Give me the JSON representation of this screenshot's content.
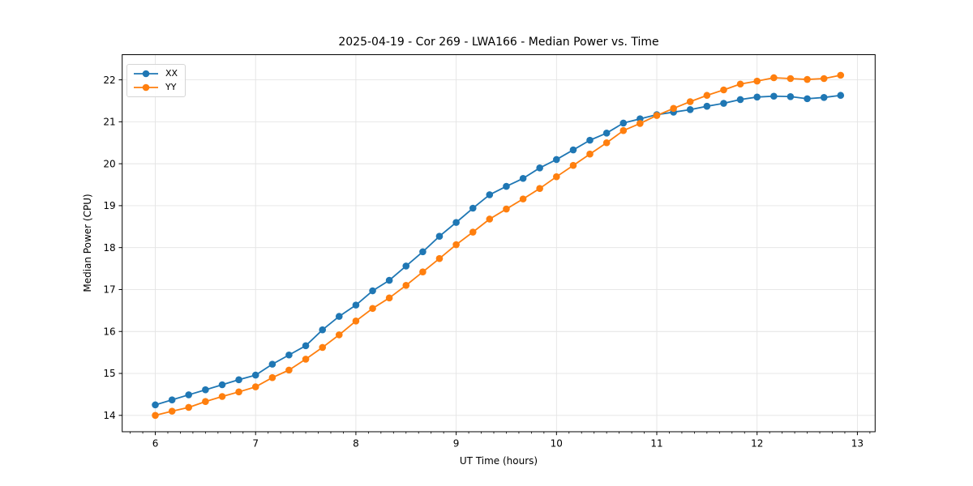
{
  "title": "2025-04-19 - Cor 269 - LWA166 - Median Power vs. Time",
  "colors": {
    "background": "#ffffff",
    "grid": "#e4e4e4",
    "spine": "#000000",
    "text": "#000000",
    "legend_border": "#d5d5d5",
    "series_xx": "#1f77b4",
    "series_yy": "#ff7f0e"
  },
  "chart_data": {
    "type": "line",
    "title": "2025-04-19 - Cor 269 - LWA166 - Median Power vs. Time",
    "xlabel": "UT Time (hours)",
    "ylabel": "Median Power (CPU)",
    "legend_position": "upper-left",
    "grid": true,
    "marker": "circle",
    "xlim": [
      5.67,
      13.177
    ],
    "ylim": [
      13.61,
      22.6
    ],
    "xticks": [
      6,
      7,
      8,
      9,
      10,
      11,
      12,
      13
    ],
    "yticks": [
      14,
      15,
      16,
      17,
      18,
      19,
      20,
      21,
      22
    ],
    "x_minor_step": 0.125,
    "x": [
      6.0,
      6.167,
      6.333,
      6.5,
      6.667,
      6.833,
      7.0,
      7.167,
      7.333,
      7.5,
      7.667,
      7.833,
      8.0,
      8.167,
      8.333,
      8.5,
      8.667,
      8.833,
      9.0,
      9.167,
      9.333,
      9.5,
      9.667,
      9.833,
      10.0,
      10.167,
      10.333,
      10.5,
      10.667,
      10.833,
      11.0,
      11.167,
      11.333,
      11.5,
      11.667,
      11.833,
      12.0,
      12.167,
      12.333,
      12.5,
      12.667,
      12.833
    ],
    "series": [
      {
        "name": "XX",
        "color": "#1f77b4",
        "values": [
          14.25,
          14.37,
          14.49,
          14.61,
          14.73,
          14.85,
          14.96,
          15.22,
          15.44,
          15.66,
          16.04,
          16.36,
          16.63,
          16.97,
          17.22,
          17.56,
          17.9,
          18.27,
          18.6,
          18.94,
          19.26,
          19.46,
          19.65,
          19.9,
          20.1,
          20.33,
          20.56,
          20.73,
          20.97,
          21.07,
          21.17,
          21.23,
          21.29,
          21.37,
          21.44,
          21.53,
          21.59,
          21.61,
          21.6,
          21.55,
          21.58,
          21.63
        ]
      },
      {
        "name": "YY",
        "color": "#ff7f0e",
        "values": [
          14.0,
          14.1,
          14.19,
          14.33,
          14.45,
          14.56,
          14.68,
          14.9,
          15.08,
          15.34,
          15.62,
          15.92,
          16.25,
          16.55,
          16.8,
          17.1,
          17.42,
          17.74,
          18.07,
          18.37,
          18.68,
          18.92,
          19.16,
          19.41,
          19.69,
          19.96,
          20.23,
          20.5,
          20.79,
          20.96,
          21.15,
          21.32,
          21.48,
          21.63,
          21.76,
          21.9,
          21.97,
          22.05,
          22.03,
          22.01,
          22.03,
          22.11
        ]
      }
    ]
  }
}
